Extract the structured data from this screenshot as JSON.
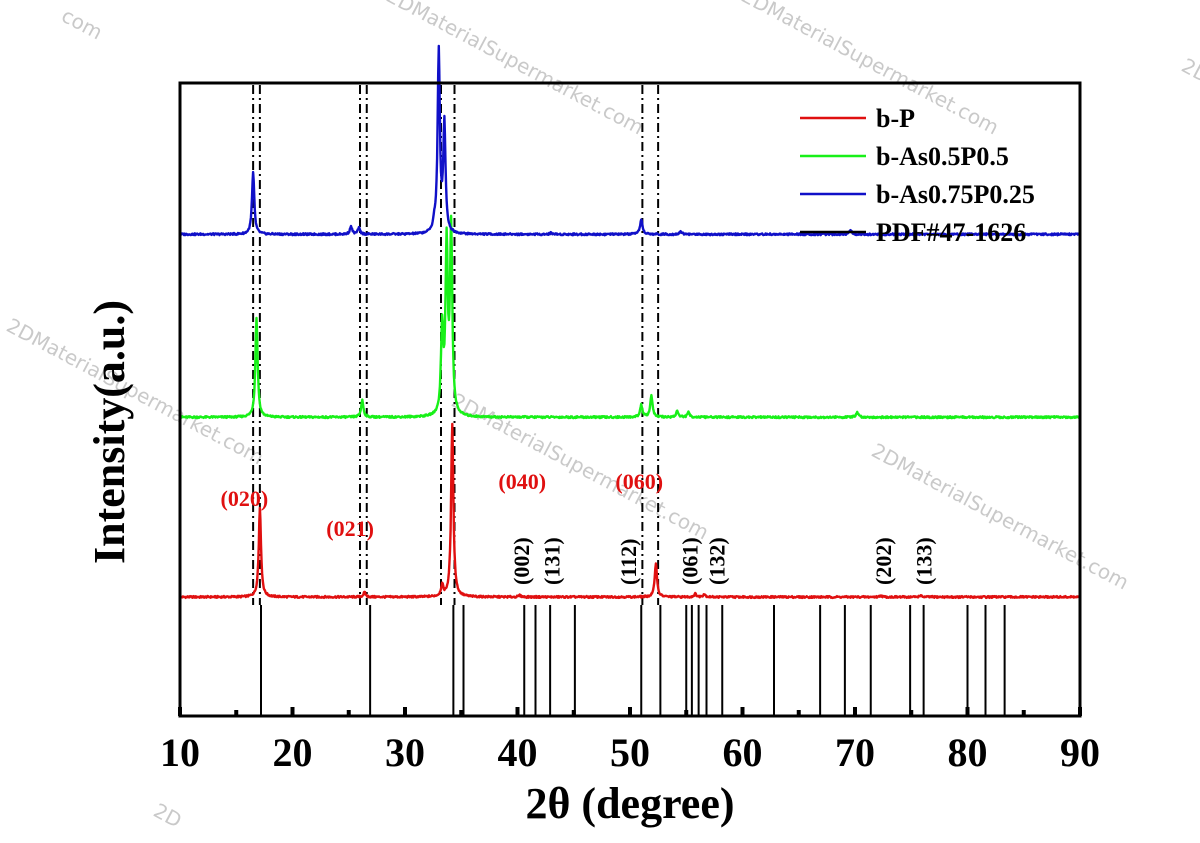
{
  "chart_data": {
    "type": "line",
    "xlabel": "2θ (degree)",
    "ylabel": "Intensity(a.u.)",
    "xlim": [
      10,
      90
    ],
    "x_ticks": [
      10,
      20,
      30,
      40,
      50,
      60,
      70,
      80,
      90
    ],
    "grid": false,
    "legend_position": "top-right",
    "series": [
      {
        "name": "b-P",
        "color": "#e01010",
        "baseline": 0.0,
        "peaks": [
          [
            17.1,
            0.58
          ],
          [
            26.4,
            0.03
          ],
          [
            33.3,
            0.07
          ],
          [
            34.2,
            1.12
          ],
          [
            40.2,
            0.01
          ],
          [
            52.3,
            0.22
          ],
          [
            55.8,
            0.02
          ],
          [
            56.6,
            0.02
          ],
          [
            72.3,
            0.01
          ],
          [
            75.8,
            0.01
          ]
        ]
      },
      {
        "name": "b-As0.5P0.5",
        "color": "#18f018",
        "baseline": 1.16,
        "peaks": [
          [
            16.8,
            0.64
          ],
          [
            26.2,
            0.11
          ],
          [
            33.3,
            0.55
          ],
          [
            33.7,
            1.08
          ],
          [
            34.1,
            1.2
          ],
          [
            51.0,
            0.08
          ],
          [
            51.9,
            0.14
          ],
          [
            54.2,
            0.04
          ],
          [
            55.2,
            0.03
          ],
          [
            70.2,
            0.03
          ]
        ]
      },
      {
        "name": "b-As0.75P0.25",
        "color": "#1010c8",
        "baseline": 2.34,
        "peaks": [
          [
            16.5,
            0.4
          ],
          [
            25.2,
            0.05
          ],
          [
            25.9,
            0.04
          ],
          [
            32.6,
            0.05
          ],
          [
            33.0,
            1.17
          ],
          [
            33.5,
            0.7
          ],
          [
            43.0,
            0.01
          ],
          [
            51.0,
            0.1
          ],
          [
            54.5,
            0.02
          ],
          [
            69.6,
            0.03
          ]
        ]
      }
    ],
    "reference": {
      "name": "PDF#47-1626",
      "color": "#000000",
      "lines": [
        17.2,
        26.9,
        34.3,
        35.2,
        40.6,
        41.6,
        42.9,
        45.1,
        51.0,
        52.7,
        55.0,
        55.5,
        56.1,
        56.8,
        58.2,
        62.8,
        66.9,
        69.1,
        71.4,
        74.9,
        76.1,
        80.0,
        81.6,
        83.3
      ]
    },
    "dashed_guides": [
      [
        16.5,
        17.1
      ],
      [
        26.0,
        26.6
      ],
      [
        33.2,
        34.4
      ],
      [
        51.1,
        52.5
      ]
    ],
    "annotations": [
      {
        "text": "(020)",
        "x": 13.6,
        "color": "red"
      },
      {
        "text": "(021)",
        "x": 23.0,
        "color": "red"
      },
      {
        "text": "(040)",
        "x": 38.3,
        "color": "red"
      },
      {
        "text": "(060)",
        "x": 48.7,
        "color": "red"
      },
      {
        "text": "(002)",
        "x": 40.3,
        "color": "black",
        "rotated": true
      },
      {
        "text": "(131)",
        "x": 43.0,
        "color": "black",
        "rotated": true
      },
      {
        "text": "(112)",
        "x": 49.8,
        "color": "black",
        "rotated": true
      },
      {
        "text": "(061)",
        "x": 55.3,
        "color": "black",
        "rotated": true
      },
      {
        "text": "(132)",
        "x": 57.7,
        "color": "black",
        "rotated": true
      },
      {
        "text": "(202)",
        "x": 72.5,
        "color": "black",
        "rotated": true
      },
      {
        "text": "(133)",
        "x": 76.1,
        "color": "black",
        "rotated": true
      }
    ]
  },
  "watermark": "2DMaterialSupermarket.com",
  "watermark_fragments": [
    "com",
    "2D"
  ]
}
